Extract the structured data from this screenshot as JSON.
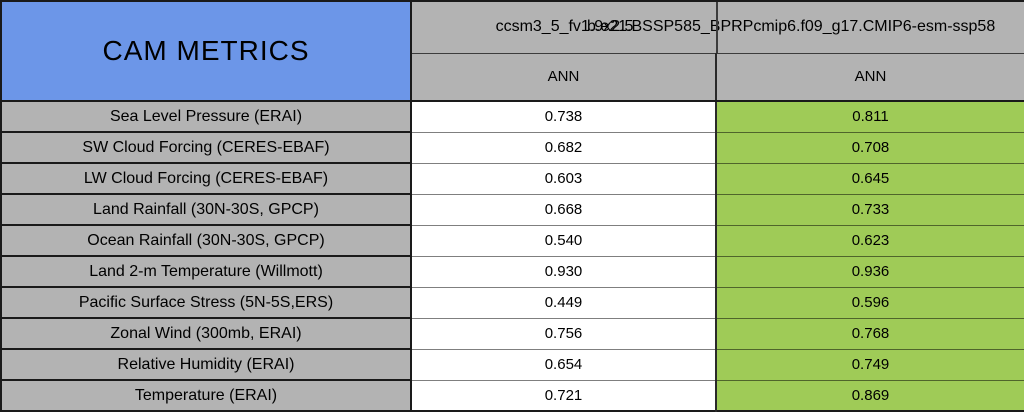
{
  "title": {
    "corner": "CAM METRICS"
  },
  "header": {
    "model1": "ccsm3_5_fv1.9x2.5",
    "model2": "b.e21.BSSP585_BPRPcmip6.f09_g17.CMIP6-esm-ssp58",
    "season1": "ANN",
    "season2": "ANN"
  },
  "rows": [
    {
      "metric": "Sea Level Pressure (ERAI)",
      "model1": "0.738",
      "model2": "0.811"
    },
    {
      "metric": "SW Cloud Forcing (CERES-EBAF)",
      "model1": "0.682",
      "model2": "0.708"
    },
    {
      "metric": "LW Cloud Forcing (CERES-EBAF)",
      "model1": "0.603",
      "model2": "0.645"
    },
    {
      "metric": "Land Rainfall (30N-30S, GPCP)",
      "model1": "0.668",
      "model2": "0.733"
    },
    {
      "metric": "Ocean Rainfall (30N-30S, GPCP)",
      "model1": "0.540",
      "model2": "0.623"
    },
    {
      "metric": "Land 2-m Temperature (Willmott)",
      "model1": "0.930",
      "model2": "0.936"
    },
    {
      "metric": "Pacific Surface Stress (5N-5S,ERS)",
      "model1": "0.449",
      "model2": "0.596"
    },
    {
      "metric": "Zonal Wind (300mb, ERAI)",
      "model1": "0.756",
      "model2": "0.768"
    },
    {
      "metric": "Relative Humidity (ERAI)",
      "model1": "0.654",
      "model2": "0.749"
    },
    {
      "metric": "Temperature (ERAI)",
      "model1": "0.721",
      "model2": "0.869"
    }
  ],
  "colors": {
    "corner_blue": "#6C96E8",
    "header_gray": "#B3B3B3",
    "highlight_green": "#9FCB57"
  },
  "chart_data": {
    "type": "table",
    "title": "CAM METRICS",
    "categories": [
      "Sea Level Pressure (ERAI)",
      "SW Cloud Forcing (CERES-EBAF)",
      "LW Cloud Forcing (CERES-EBAF)",
      "Land Rainfall (30N-30S, GPCP)",
      "Ocean Rainfall (30N-30S, GPCP)",
      "Land 2-m Temperature (Willmott)",
      "Pacific Surface Stress (5N-5S,ERS)",
      "Zonal Wind (300mb, ERAI)",
      "Relative Humidity (ERAI)",
      "Temperature (ERAI)"
    ],
    "series": [
      {
        "name": "ccsm3_5_fv1.9x2.5",
        "season": "ANN",
        "values": [
          0.738,
          0.682,
          0.603,
          0.668,
          0.54,
          0.93,
          0.449,
          0.756,
          0.654,
          0.721
        ]
      },
      {
        "name": "b.e21.BSSP585_BPRPcmip6.f09_g17.CMIP6-esm-ssp58",
        "season": "ANN",
        "values": [
          0.811,
          0.708,
          0.645,
          0.733,
          0.623,
          0.936,
          0.596,
          0.768,
          0.749,
          0.869
        ]
      }
    ],
    "layout": {
      "highlight_column": 2,
      "highlight_color": "#9FCB57",
      "grid": true
    }
  }
}
